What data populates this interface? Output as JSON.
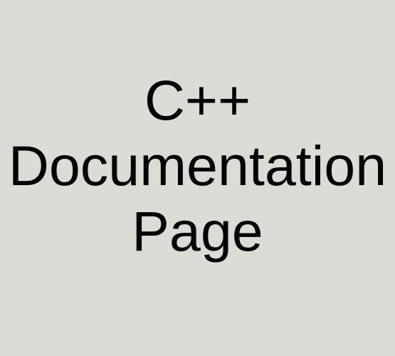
{
  "title_lines": [
    "C++",
    "Documentation",
    "Page"
  ]
}
